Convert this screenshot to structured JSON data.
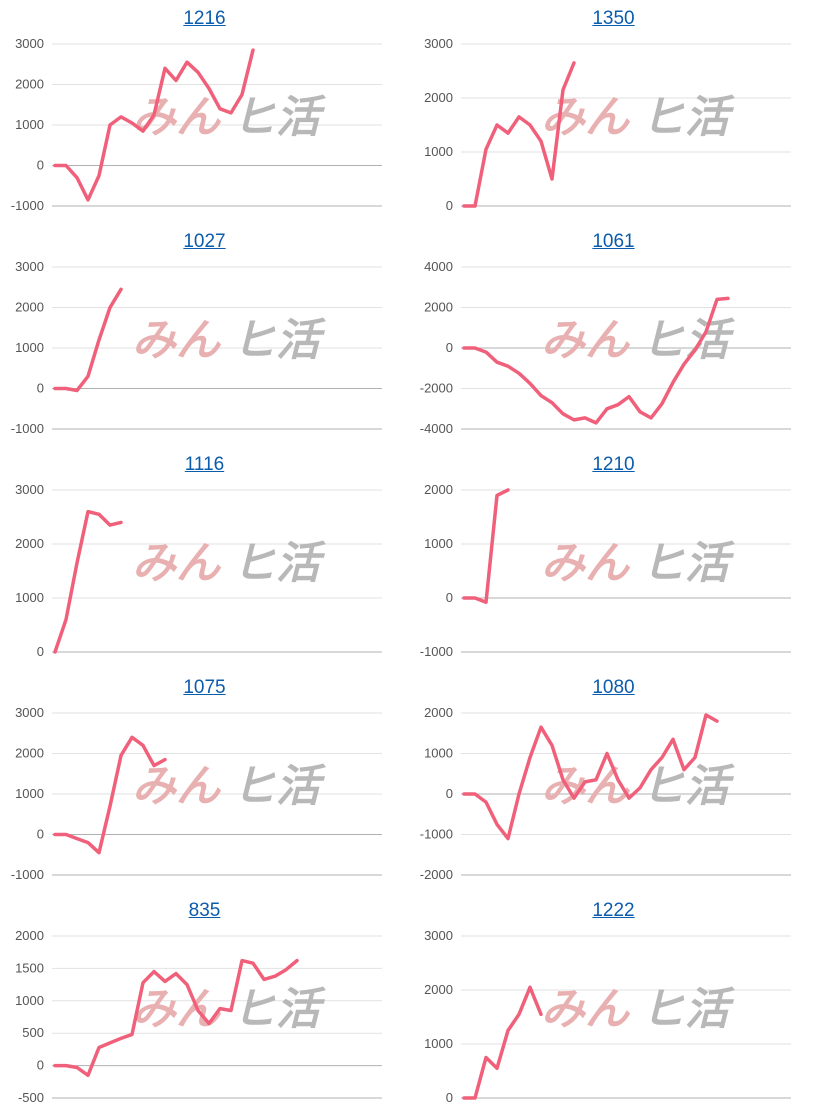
{
  "line_color": "#f0607a",
  "watermark": {
    "text_left": "みん",
    "text_right": "ヒ活",
    "left_color": "#e8b0b0",
    "right_color": "#b8b8b8"
  },
  "chart_data": [
    {
      "type": "line",
      "title": "1216",
      "ylim": [
        -1000,
        3000
      ],
      "yticks": [
        -1000,
        0,
        1000,
        2000,
        3000
      ],
      "xmax": 30,
      "values": [
        0,
        0,
        -300,
        -850,
        -250,
        1000,
        1200,
        1050,
        850,
        1250,
        2400,
        2100,
        2550,
        2300,
        1900,
        1400,
        1300,
        1750,
        2850
      ]
    },
    {
      "type": "line",
      "title": "1350",
      "ylim": [
        0,
        3000
      ],
      "yticks": [
        0,
        1000,
        2000,
        3000
      ],
      "xmax": 30,
      "values": [
        0,
        0,
        1050,
        1500,
        1350,
        1650,
        1500,
        1200,
        500,
        2150,
        2650
      ]
    },
    {
      "type": "line",
      "title": "1027",
      "ylim": [
        -1000,
        3000
      ],
      "yticks": [
        -1000,
        0,
        1000,
        2000,
        3000
      ],
      "xmax": 30,
      "values": [
        0,
        0,
        -50,
        300,
        1200,
        2000,
        2450
      ]
    },
    {
      "type": "line",
      "title": "1061",
      "ylim": [
        -4000,
        4000
      ],
      "yticks": [
        -4000,
        -2000,
        0,
        2000,
        4000
      ],
      "xmax": 30,
      "values": [
        0,
        0,
        -200,
        -700,
        -900,
        -1250,
        -1750,
        -2350,
        -2700,
        -3250,
        -3550,
        -3450,
        -3700,
        -3000,
        -2800,
        -2400,
        -3150,
        -3450,
        -2750,
        -1700,
        -800,
        -100,
        800,
        2400,
        2450
      ]
    },
    {
      "type": "line",
      "title": "1116",
      "ylim": [
        0,
        3000
      ],
      "yticks": [
        0,
        1000,
        2000,
        3000
      ],
      "xmax": 30,
      "values": [
        0,
        600,
        1650,
        2600,
        2550,
        2350,
        2400
      ]
    },
    {
      "type": "line",
      "title": "1210",
      "ylim": [
        -1000,
        2000
      ],
      "yticks": [
        -1000,
        0,
        1000,
        2000
      ],
      "xmax": 30,
      "values": [
        0,
        0,
        -80,
        1900,
        2000
      ]
    },
    {
      "type": "line",
      "title": "1075",
      "ylim": [
        -1000,
        3000
      ],
      "yticks": [
        -1000,
        0,
        1000,
        2000,
        3000
      ],
      "xmax": 30,
      "values": [
        0,
        0,
        -100,
        -200,
        -450,
        700,
        1950,
        2400,
        2200,
        1700,
        1850
      ]
    },
    {
      "type": "line",
      "title": "1080",
      "ylim": [
        -2000,
        2000
      ],
      "yticks": [
        -2000,
        -1000,
        0,
        1000,
        2000
      ],
      "xmax": 30,
      "values": [
        0,
        0,
        -200,
        -750,
        -1100,
        0,
        900,
        1650,
        1200,
        350,
        -100,
        300,
        350,
        1000,
        350,
        -100,
        150,
        600,
        900,
        1350,
        600,
        900,
        1950,
        1800
      ]
    },
    {
      "type": "line",
      "title": "835",
      "ylim": [
        -500,
        2000
      ],
      "yticks": [
        -500,
        0,
        500,
        1000,
        1500,
        2000
      ],
      "xmax": 30,
      "values": [
        0,
        0,
        -30,
        -150,
        280,
        350,
        420,
        480,
        1280,
        1450,
        1300,
        1420,
        1250,
        850,
        650,
        880,
        850,
        1620,
        1580,
        1330,
        1380,
        1480,
        1620
      ]
    },
    {
      "type": "line",
      "title": "1222",
      "ylim": [
        0,
        3000
      ],
      "yticks": [
        0,
        1000,
        2000,
        3000
      ],
      "xmax": 30,
      "values": [
        0,
        0,
        750,
        550,
        1250,
        1550,
        2050,
        1550
      ]
    }
  ]
}
